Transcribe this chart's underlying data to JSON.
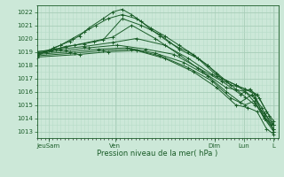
{
  "title": "",
  "xlabel": "Pression niveau de la mer( hPa )",
  "bg_color": "#cce8d8",
  "grid_color_major": "#a8cdb8",
  "grid_color_minor": "#b8dcc8",
  "line_color": "#1a5c28",
  "ylim": [
    1012.5,
    1022.5
  ],
  "yticks": [
    1013,
    1014,
    1015,
    1016,
    1017,
    1018,
    1019,
    1020,
    1021,
    1022
  ],
  "xtick_labels": [
    "JeuSam",
    "Ven",
    "Dim",
    "Lun",
    "L"
  ],
  "xtick_positions": [
    0.05,
    0.33,
    0.75,
    0.875,
    1.0
  ],
  "lines": [
    {
      "x": [
        0.0,
        0.04,
        0.07,
        0.1,
        0.14,
        0.18,
        0.22,
        0.28,
        0.32,
        0.36,
        0.4,
        0.44,
        0.48,
        0.52,
        0.56,
        0.6,
        0.64,
        0.68,
        0.72,
        0.76,
        0.8,
        0.84,
        0.88,
        0.92,
        0.96,
        1.0
      ],
      "y": [
        1018.8,
        1019.0,
        1019.3,
        1019.5,
        1019.8,
        1020.2,
        1020.8,
        1021.5,
        1022.0,
        1022.2,
        1021.8,
        1021.3,
        1020.7,
        1020.2,
        1019.7,
        1019.3,
        1019.0,
        1018.5,
        1018.0,
        1017.4,
        1016.8,
        1016.2,
        1015.6,
        1015.0,
        1014.4,
        1013.5
      ]
    },
    {
      "x": [
        0.0,
        0.06,
        0.12,
        0.2,
        0.28,
        0.36,
        0.44,
        0.52,
        0.6,
        0.68,
        0.76,
        0.84,
        0.88,
        0.92,
        0.96,
        1.0
      ],
      "y": [
        1018.9,
        1019.1,
        1019.4,
        1019.6,
        1019.9,
        1021.5,
        1021.0,
        1020.3,
        1019.2,
        1018.5,
        1017.2,
        1016.5,
        1016.0,
        1015.5,
        1014.2,
        1013.2
      ]
    },
    {
      "x": [
        0.0,
        0.08,
        0.16,
        0.24,
        0.32,
        0.4,
        0.5,
        0.6,
        0.7,
        0.8,
        0.88,
        0.92,
        0.96,
        1.0
      ],
      "y": [
        1019.0,
        1019.2,
        1019.5,
        1019.8,
        1020.1,
        1021.0,
        1020.0,
        1018.8,
        1017.5,
        1016.3,
        1016.0,
        1015.2,
        1014.0,
        1013.0
      ]
    },
    {
      "x": [
        0.0,
        0.1,
        0.2,
        0.32,
        0.42,
        0.54,
        0.64,
        0.74,
        0.82,
        0.88,
        0.93,
        0.97,
        1.0
      ],
      "y": [
        1019.0,
        1019.2,
        1019.4,
        1019.7,
        1020.0,
        1019.5,
        1018.5,
        1017.3,
        1016.5,
        1016.2,
        1015.8,
        1014.5,
        1013.8
      ]
    },
    {
      "x": [
        0.0,
        0.12,
        0.22,
        0.34,
        0.46,
        0.58,
        0.68,
        0.78,
        0.86,
        0.9,
        0.94,
        0.98,
        1.0
      ],
      "y": [
        1018.9,
        1019.1,
        1019.3,
        1019.5,
        1019.2,
        1018.8,
        1017.8,
        1016.8,
        1015.8,
        1016.2,
        1015.5,
        1014.2,
        1013.5
      ]
    },
    {
      "x": [
        0.0,
        0.14,
        0.26,
        0.38,
        0.5,
        0.62,
        0.72,
        0.8,
        0.86,
        0.91,
        0.95,
        0.99,
        1.0
      ],
      "y": [
        1018.8,
        1019.0,
        1019.2,
        1019.3,
        1018.9,
        1018.2,
        1017.2,
        1016.0,
        1015.2,
        1015.8,
        1014.8,
        1013.5,
        1013.0
      ]
    },
    {
      "x": [
        0.0,
        0.16,
        0.28,
        0.4,
        0.52,
        0.64,
        0.74,
        0.82,
        0.88,
        0.92,
        0.96,
        1.0
      ],
      "y": [
        1018.7,
        1018.9,
        1019.1,
        1019.2,
        1018.7,
        1017.8,
        1016.8,
        1015.5,
        1015.0,
        1015.3,
        1014.0,
        1013.5
      ]
    },
    {
      "x": [
        0.0,
        0.18,
        0.3,
        0.42,
        0.54,
        0.66,
        0.76,
        0.84,
        0.89,
        0.93,
        0.97,
        1.0
      ],
      "y": [
        1018.6,
        1018.8,
        1019.0,
        1019.1,
        1018.5,
        1017.5,
        1016.3,
        1015.0,
        1014.8,
        1014.5,
        1013.2,
        1012.8
      ]
    },
    {
      "x": [
        0.0,
        0.05,
        0.1,
        0.15,
        0.2,
        0.25,
        0.3,
        0.36,
        0.42,
        0.48,
        0.54,
        0.6,
        0.66,
        0.72,
        0.78,
        0.84,
        0.88,
        0.92,
        0.96,
        1.0
      ],
      "y": [
        1018.7,
        1019.1,
        1019.5,
        1020.0,
        1020.5,
        1021.0,
        1021.5,
        1021.8,
        1021.5,
        1020.8,
        1020.2,
        1019.5,
        1018.8,
        1018.0,
        1017.0,
        1016.5,
        1016.2,
        1015.8,
        1014.0,
        1013.2
      ]
    }
  ]
}
